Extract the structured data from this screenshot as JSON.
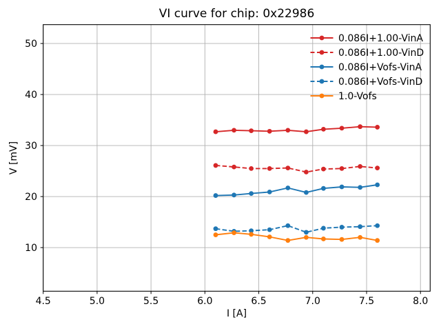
{
  "figure": {
    "title": "VI curve for chip: 0x22986",
    "xlabel": "I [A]",
    "ylabel": "V [mV]"
  },
  "chart_data": {
    "type": "line",
    "title": "VI curve for chip: 0x22986",
    "xlabel": "I [A]",
    "ylabel": "V [mV]",
    "xlim": [
      4.5,
      8.09
    ],
    "ylim": [
      1.45,
      53.7
    ],
    "xticks": [
      4.5,
      5.0,
      5.5,
      6.0,
      6.5,
      7.0,
      7.5,
      8.0
    ],
    "xtick_labels": [
      "4.5",
      "5.0",
      "5.5",
      "6.0",
      "6.5",
      "7.0",
      "7.5",
      "8.0"
    ],
    "yticks": [
      10,
      20,
      30,
      40,
      50
    ],
    "ytick_labels": [
      "10",
      "20",
      "30",
      "40",
      "50"
    ],
    "grid": true,
    "grid_color": "#b0b0b0",
    "spine_color": "#000000",
    "legend_position": "upper right",
    "legend_frame": false,
    "x": [
      6.1,
      6.27,
      6.43,
      6.6,
      6.77,
      6.94,
      7.1,
      7.27,
      7.44,
      7.6
    ],
    "series": [
      {
        "name": "0.086I+1.00-VinA",
        "color": "#d62728",
        "linestyle": "solid",
        "marker": "circle",
        "values": [
          32.7,
          33.0,
          32.9,
          32.8,
          33.0,
          32.7,
          33.2,
          33.4,
          33.7,
          33.6
        ]
      },
      {
        "name": "0.086I+1.00-VinD",
        "color": "#d62728",
        "linestyle": "dashed",
        "marker": "circle",
        "values": [
          26.1,
          25.8,
          25.5,
          25.5,
          25.6,
          24.8,
          25.4,
          25.5,
          25.9,
          25.6
        ]
      },
      {
        "name": "0.086I+Vofs-VinA",
        "color": "#1f77b4",
        "linestyle": "solid",
        "marker": "circle",
        "values": [
          20.2,
          20.3,
          20.6,
          20.9,
          21.7,
          20.8,
          21.6,
          21.9,
          21.8,
          22.3
        ]
      },
      {
        "name": "0.086I+Vofs-VinD",
        "color": "#1f77b4",
        "linestyle": "dashed",
        "marker": "circle",
        "values": [
          13.7,
          13.2,
          13.3,
          13.5,
          14.3,
          13.0,
          13.8,
          14.0,
          14.1,
          14.3
        ]
      },
      {
        "name": "1.0-Vofs",
        "color": "#ff7f0e",
        "linestyle": "solid",
        "marker": "circle",
        "values": [
          12.5,
          12.9,
          12.6,
          12.1,
          11.4,
          12.0,
          11.7,
          11.6,
          12.0,
          11.4
        ]
      }
    ]
  }
}
